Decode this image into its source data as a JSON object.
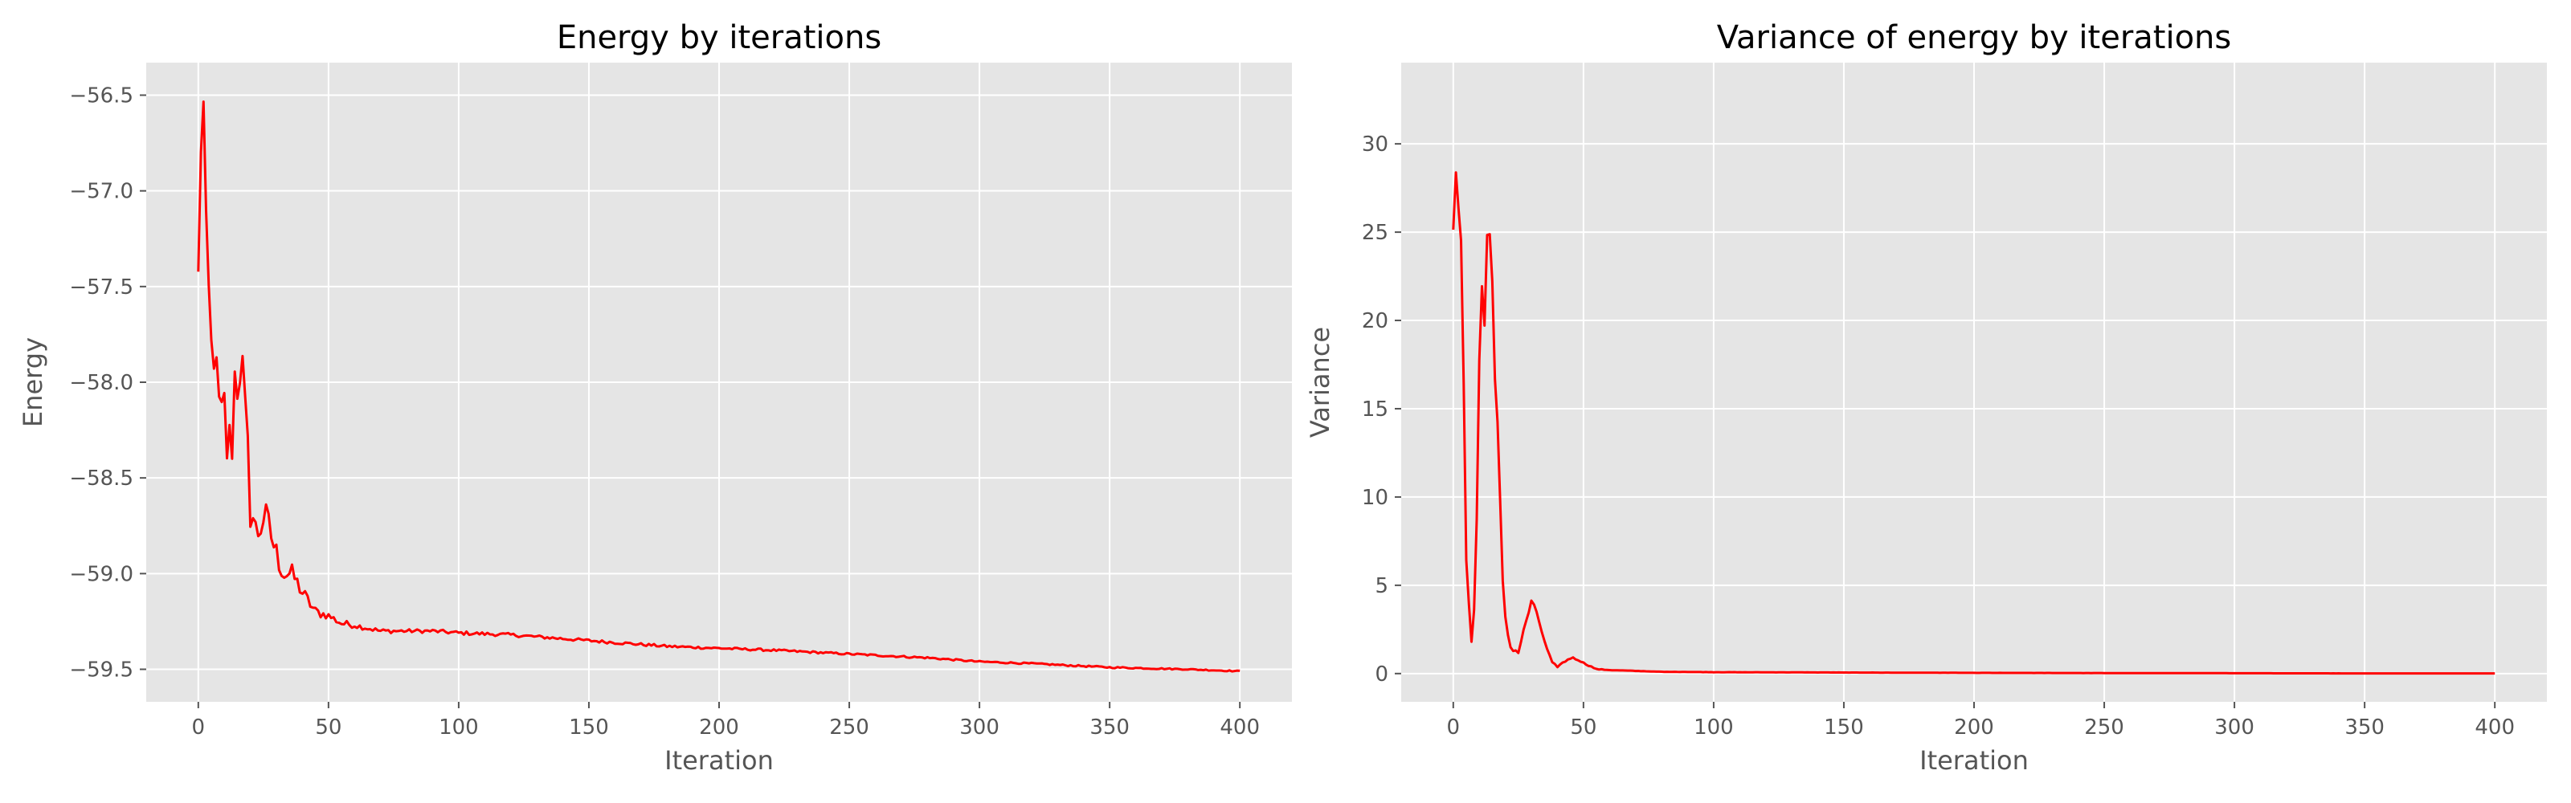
{
  "chart_data": [
    {
      "type": "line",
      "title": "Energy by iterations",
      "xlabel": "Iteration",
      "ylabel": "Energy",
      "xlim": [
        -20,
        420
      ],
      "ylim": [
        -59.67,
        -56.33
      ],
      "xticks": [
        0,
        50,
        100,
        150,
        200,
        250,
        300,
        350,
        400
      ],
      "xtick_labels": [
        "0",
        "50",
        "100",
        "150",
        "200",
        "250",
        "300",
        "350",
        "400"
      ],
      "yticks": [
        -56.5,
        -57.0,
        -57.5,
        -58.0,
        -58.5,
        -59.0,
        -59.5
      ],
      "ytick_labels": [
        "−56.5",
        "−57.0",
        "−57.5",
        "−58.0",
        "−58.5",
        "−59.0",
        "−59.5"
      ],
      "grid": true,
      "series": [
        {
          "color": "#ff0000",
          "x": [
            0,
            1,
            2,
            3,
            4,
            5,
            6,
            7,
            8,
            9,
            10,
            12,
            14,
            16,
            18,
            20,
            22,
            25,
            28,
            30,
            33,
            36,
            40,
            45,
            50,
            55,
            60,
            70,
            80,
            90,
            100,
            120,
            140,
            160,
            180,
            200,
            220,
            250,
            280,
            300,
            320,
            350,
            380,
            400
          ],
          "y": [
            -57.5,
            -56.7,
            -56.6,
            -57.4,
            -57.6,
            -57.9,
            -57.7,
            -58.1,
            -58.2,
            -58.3,
            -58.2,
            -58.4,
            -58.0,
            -57.8,
            -58.3,
            -58.6,
            -58.8,
            -58.7,
            -58.8,
            -58.9,
            -59.0,
            -59.0,
            -59.1,
            -59.2,
            -59.22,
            -59.26,
            -59.27,
            -59.3,
            -59.3,
            -59.3,
            -59.31,
            -59.32,
            -59.34,
            -59.36,
            -59.38,
            -59.39,
            -59.4,
            -59.42,
            -59.44,
            -59.46,
            -59.47,
            -59.49,
            -59.5,
            -59.51
          ],
          "noise": [
            0.25,
            0.25,
            0.25,
            0.3,
            0.3,
            0.35,
            0.35,
            0.3,
            0.3,
            0.3,
            0.3,
            0.3,
            0.35,
            0.35,
            0.3,
            0.2,
            0.15,
            0.12,
            0.1,
            0.08,
            0.06,
            0.05,
            0.04,
            0.03,
            0.02,
            0.02,
            0.015,
            0.012,
            0.01,
            0.01,
            0.01,
            0.009,
            0.008,
            0.008,
            0.007,
            0.006,
            0.006,
            0.005,
            0.005,
            0.004,
            0.004,
            0.004,
            0.003,
            0.003
          ]
        }
      ]
    },
    {
      "type": "line",
      "title": "Variance of energy by iterations",
      "xlabel": "Iteration",
      "ylabel": "Variance",
      "xlim": [
        -20,
        420
      ],
      "ylim": [
        -1.6,
        34.6
      ],
      "xticks": [
        0,
        50,
        100,
        150,
        200,
        250,
        300,
        350,
        400
      ],
      "xtick_labels": [
        "0",
        "50",
        "100",
        "150",
        "200",
        "250",
        "300",
        "350",
        "400"
      ],
      "yticks": [
        0,
        5,
        10,
        15,
        20,
        25,
        30
      ],
      "ytick_labels": [
        "0",
        "5",
        "10",
        "15",
        "20",
        "25",
        "30"
      ],
      "grid": true,
      "series": [
        {
          "color": "#ff0000",
          "x": [
            0,
            1,
            2,
            3,
            4,
            5,
            6,
            7,
            8,
            9,
            10,
            11,
            12,
            13,
            14,
            15,
            16,
            17,
            18,
            19,
            20,
            22,
            25,
            28,
            30,
            32,
            35,
            38,
            40,
            43,
            45,
            48,
            50,
            55,
            60,
            70,
            80,
            100,
            150,
            200,
            250,
            300,
            350,
            400
          ],
          "y": [
            27,
            31,
            28,
            22,
            15,
            7,
            3,
            2,
            4,
            9,
            17,
            22,
            20,
            25,
            24,
            22,
            19,
            14,
            9,
            5,
            3,
            1.5,
            1.2,
            3,
            4,
            3.5,
            1.8,
            0.6,
            0.4,
            0.7,
            0.9,
            0.8,
            0.6,
            0.25,
            0.2,
            0.15,
            0.1,
            0.08,
            0.06,
            0.04,
            0.03,
            0.02,
            0.01,
            0.01
          ],
          "noise": [
            3,
            3,
            3,
            3,
            2.5,
            2,
            1,
            0.5,
            0.5,
            1,
            2.5,
            3,
            3,
            3,
            3,
            3,
            2.5,
            2,
            1,
            0.5,
            0.3,
            0.2,
            0.1,
            0.15,
            0.2,
            0.15,
            0.08,
            0.05,
            0.05,
            0.06,
            0.08,
            0.06,
            0.04,
            0.02,
            0.01,
            0.01,
            0.005,
            0.005,
            0.003,
            0.002,
            0.002,
            0.001,
            0.001,
            0.001
          ]
        }
      ]
    }
  ]
}
